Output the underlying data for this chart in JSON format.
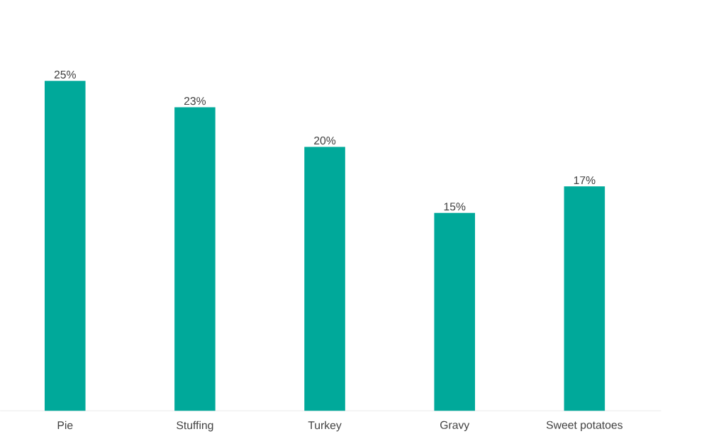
{
  "chart_data": {
    "type": "bar",
    "categories": [
      "Pie",
      "Stuffing",
      "Turkey",
      "Gravy",
      "Sweet potatoes"
    ],
    "values": [
      25,
      23,
      20,
      15,
      17
    ],
    "value_labels": [
      "25%",
      "23%",
      "20%",
      "15%",
      "17%"
    ],
    "color": "#00a99a"
  }
}
